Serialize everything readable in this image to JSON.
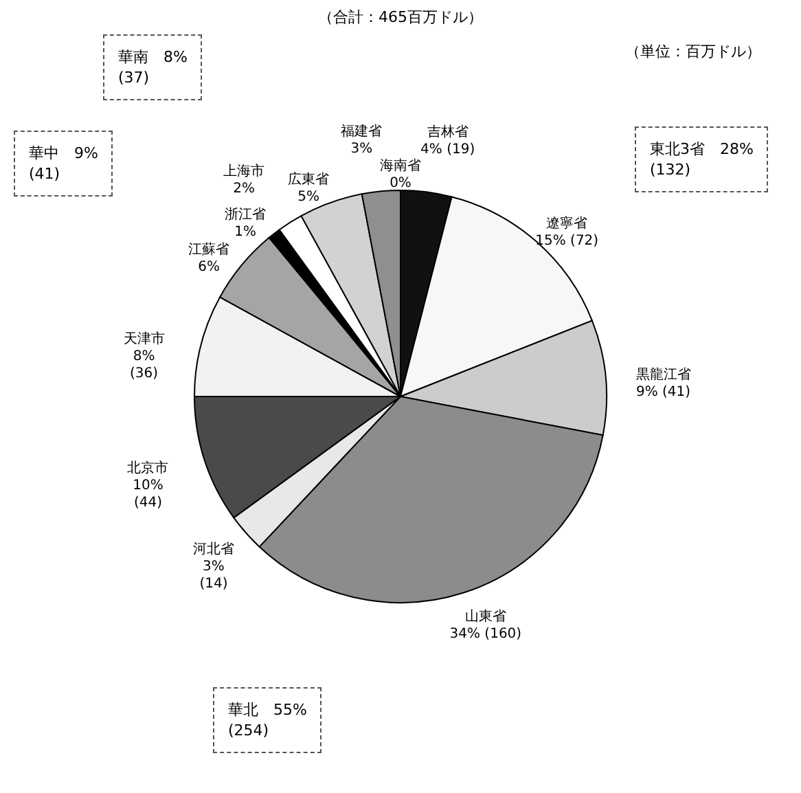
{
  "chart_data": {
    "type": "pie",
    "title": "（合計：465百万ドル）",
    "categories": [
      "海南省",
      "吉林省",
      "遼寧省",
      "黒龍江省",
      "山東省",
      "河北省",
      "北京市",
      "天津市",
      "江蘇省",
      "浙江省",
      "上海市",
      "広東省",
      "福建省"
    ],
    "values": [
      0,
      4,
      15,
      9,
      34,
      3,
      10,
      8,
      6,
      1,
      2,
      5,
      3
    ],
    "value_labels": [
      "0%",
      "4% (19)",
      "15% (72)",
      "9% (41)",
      "34% (160)",
      "3%\n(14)",
      "10%\n(44)",
      "8%\n(36)",
      "6%",
      "1%",
      "2%",
      "5%",
      "3%"
    ],
    "colors": [
      "#ffffff",
      "#111111",
      "#f7f7f7",
      "#cccccc",
      "#8c8c8c",
      "#e8e8e8",
      "#4a4a4a",
      "#f2f2f2",
      "#a5a5a5",
      "#000000",
      "#ffffff",
      "#d2d2d2",
      "#8f8f8f"
    ],
    "annotations": [
      "（単位：百万ドル）",
      "華南　8%\n(37)",
      "華中　9%\n(41)",
      "東北3省　28%\n(132)",
      "華北　55%\n(254)"
    ]
  }
}
